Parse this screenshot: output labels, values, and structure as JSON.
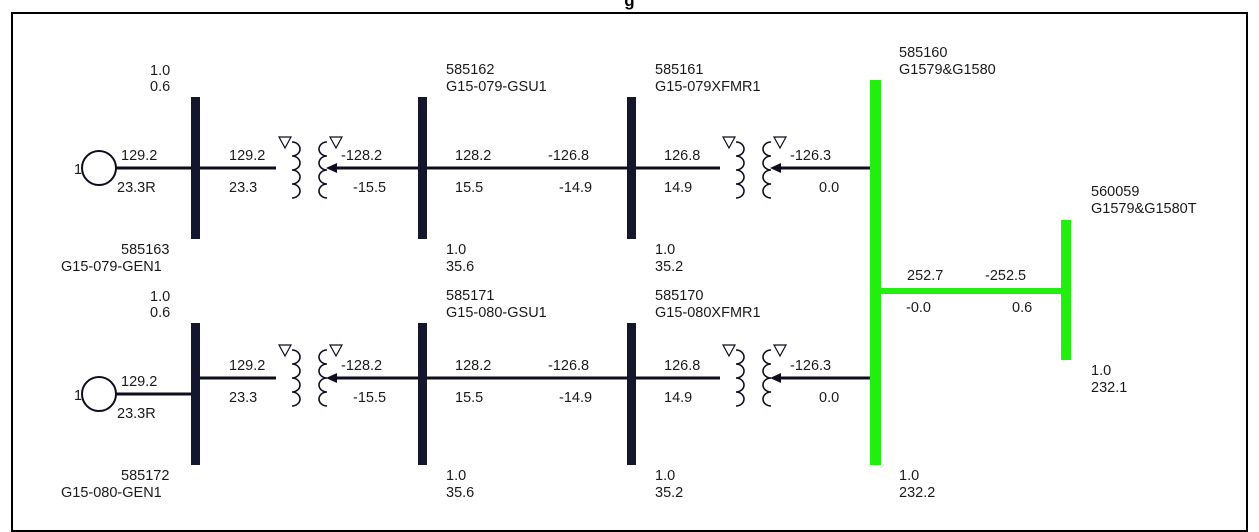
{
  "title": "g",
  "colors": {
    "bus": "#14162e",
    "hv_bus": "#22ee0f",
    "line": "#0d0d1f"
  },
  "gen_unit_label": "1",
  "gen_row1": {
    "gen": {
      "mw": "129.2",
      "mvar": "23.3R"
    },
    "bus_left": {
      "id": "585163",
      "name": "G15-079-GEN1",
      "vpu": "1.0",
      "angle": "0.6"
    },
    "bus_mid": {
      "id": "585162",
      "name": "G15-079-GSU1",
      "vpu": "1.0",
      "angle": "35.6"
    },
    "bus_right": {
      "id": "585161",
      "name": "G15-079XFMR1",
      "vpu": "1.0",
      "angle": "35.2"
    },
    "gsu": {
      "from_mw": "129.2",
      "from_mvar": "23.3",
      "to_mw": "-128.2",
      "to_mvar": "-15.5"
    },
    "line": {
      "from_mw": "128.2",
      "from_mvar": "15.5",
      "to_mw": "-126.8",
      "to_mvar": "-14.9"
    },
    "xfmr": {
      "from_mw": "126.8",
      "from_mvar": "14.9",
      "to_mw": "-126.3",
      "to_mvar": "0.0"
    }
  },
  "gen_row2": {
    "gen": {
      "mw": "129.2",
      "mvar": "23.3R"
    },
    "bus_left": {
      "id": "585172",
      "name": "G15-080-GEN1",
      "vpu": "1.0",
      "angle": "0.6"
    },
    "bus_mid": {
      "id": "585171",
      "name": "G15-080-GSU1",
      "vpu": "1.0",
      "angle": "35.6"
    },
    "bus_right": {
      "id": "585170",
      "name": "G15-080XFMR1",
      "vpu": "1.0",
      "angle": "35.2"
    },
    "gsu": {
      "from_mw": "129.2",
      "from_mvar": "23.3",
      "to_mw": "-128.2",
      "to_mvar": "-15.5"
    },
    "line": {
      "from_mw": "128.2",
      "from_mvar": "15.5",
      "to_mw": "-126.8",
      "to_mvar": "-14.9"
    },
    "xfmr": {
      "from_mw": "126.8",
      "from_mvar": "14.9",
      "to_mw": "-126.3",
      "to_mvar": "0.0"
    }
  },
  "collector_bus": {
    "id": "585160",
    "name": "G1579&G1580",
    "vpu": "1.0",
    "angle": "232.2"
  },
  "poi_bus": {
    "id": "560059",
    "name": "G1579&G1580T",
    "vpu": "1.0",
    "angle": "232.1"
  },
  "tie_line": {
    "from_mw": "252.7",
    "from_mvar": "-0.0",
    "to_mw": "-252.5",
    "to_mvar": "0.6"
  }
}
